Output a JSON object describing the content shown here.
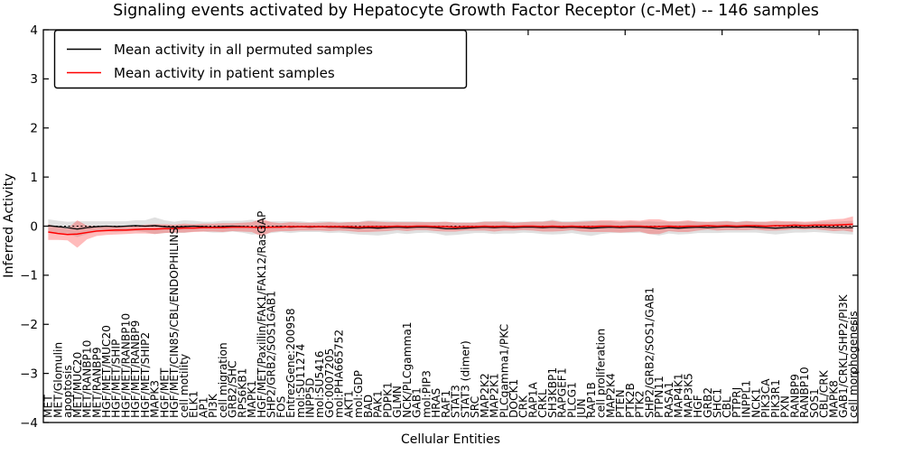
{
  "title": "Signaling events activated by Hepatocyte Growth Factor Receptor (c-Met) -- 146 samples",
  "axes": {
    "y_label": "Inferred Activity",
    "x_label": "Cellular Entities",
    "y_ticks": [
      "4",
      "3",
      "2",
      "1",
      "0",
      "−1",
      "−2",
      "−3",
      "−4"
    ]
  },
  "legend": {
    "items": [
      {
        "label": "Mean activity in all permuted samples",
        "color": "#000000"
      },
      {
        "label": "Mean activity in patient samples",
        "color": "#ff0000"
      }
    ]
  },
  "chart_data": {
    "type": "line",
    "title": "Signaling events activated by Hepatocyte Growth Factor Receptor (c-Met) -- 146 samples",
    "xlabel": "Cellular Entities",
    "ylabel": "Inferred Activity",
    "ylim": [
      -4,
      4
    ],
    "grid": false,
    "legend_position": "upper left",
    "zero_reference_line": true,
    "categories": [
      "MET",
      "MET/Glomulin",
      "apoptosis",
      "MET/MUC20",
      "MET/RANBP10",
      "MET/RANBP9",
      "HGF/MET/MUC20",
      "HGF/MET/SHIP",
      "HGF/MET/RANBP10",
      "HGF/MET/RANBP9",
      "HGF/MET/SHIP2",
      "MAPK3",
      "HGF/MET",
      "HGF/MET/CIN85/CBL/ENDOPHILINS",
      "cell motility",
      "ELK1",
      "AP1",
      "PI3K",
      "cell migration",
      "GRB2/SHC",
      "RPS6KB1",
      "MAPK1",
      "HGF/MET/Paxillin/FAK1/FAK12/RasGAP",
      "SHP2/GRB2/SOS1GAB1",
      "FOS",
      "EntrezGene:200958",
      "mol:SU11274",
      "INPP5D",
      "mol:SU5416",
      "GO:0007205",
      "mol:PHA665752",
      "AKT1",
      "mol:GDP",
      "BAD",
      "PAK1",
      "PDPK1",
      "GLMN",
      "NCK/PLCgamma1",
      "GAB1",
      "mol:PIP3",
      "HRAS",
      "RAF1",
      "STAT3",
      "STAT3 (dimer)",
      "SRC",
      "MAP2K2",
      "MAP2K1",
      "PLCgamma1/PKC",
      "DOCK1",
      "CRK",
      "RAP1A",
      "CRKL",
      "SH3KBP1",
      "RAPGEF1",
      "PLCG1",
      "JUN",
      "RAP1B",
      "cell proliferation",
      "MAP2K4",
      "PTEN",
      "PTK2B",
      "PTK2",
      "SHP2/GRB2/SOS1/GAB1",
      "PTPN11",
      "RASA1",
      "MAP4K1",
      "MAP3K5",
      "HGF",
      "GRB2",
      "SHC1",
      "CBL",
      "PTPRJ",
      "INPPL1",
      "NCK1",
      "PIK3CA",
      "PIK3R1",
      "PXN",
      "RANBP9",
      "RANBP10",
      "SOS1",
      "CBL/CRK",
      "MAPK8",
      "GAB1/CRKL/SHP2/PI3K",
      "cell morphogenesis"
    ],
    "series": [
      {
        "name": "Mean activity in all permuted samples",
        "color": "#000000",
        "values": [
          0.01,
          -0.01,
          -0.03,
          -0.06,
          -0.03,
          -0.01,
          0.0,
          -0.01,
          0.0,
          0.01,
          0.0,
          0.01,
          -0.01,
          -0.02,
          -0.01,
          0.0,
          -0.01,
          -0.02,
          -0.01,
          0.0,
          -0.01,
          -0.02,
          -0.03,
          -0.02,
          -0.01,
          -0.02,
          -0.01,
          -0.02,
          -0.01,
          -0.02,
          -0.02,
          -0.03,
          -0.04,
          -0.03,
          -0.04,
          -0.03,
          -0.02,
          -0.03,
          -0.02,
          -0.02,
          -0.03,
          -0.05,
          -0.05,
          -0.04,
          -0.03,
          -0.02,
          -0.03,
          -0.02,
          -0.03,
          -0.02,
          -0.02,
          -0.03,
          -0.02,
          -0.03,
          -0.02,
          -0.03,
          -0.04,
          -0.03,
          -0.02,
          -0.03,
          -0.02,
          -0.02,
          -0.03,
          -0.05,
          -0.03,
          -0.04,
          -0.03,
          -0.02,
          -0.03,
          -0.02,
          -0.01,
          -0.02,
          -0.01,
          -0.02,
          -0.03,
          -0.04,
          -0.03,
          -0.02,
          -0.03,
          -0.02,
          -0.02,
          -0.03,
          -0.03,
          -0.03
        ]
      },
      {
        "name": "Mean activity in patient samples",
        "color": "#ff0000",
        "values": [
          -0.12,
          -0.15,
          -0.17,
          -0.16,
          -0.13,
          -0.1,
          -0.09,
          -0.08,
          -0.08,
          -0.07,
          -0.06,
          -0.06,
          -0.05,
          -0.05,
          -0.04,
          -0.04,
          -0.03,
          -0.03,
          -0.03,
          -0.02,
          -0.02,
          -0.02,
          -0.03,
          -0.02,
          -0.02,
          -0.01,
          -0.01,
          -0.01,
          -0.01,
          -0.01,
          -0.01,
          -0.01,
          -0.02,
          -0.01,
          -0.01,
          -0.01,
          0.0,
          -0.01,
          0.0,
          0.0,
          -0.01,
          -0.01,
          -0.02,
          -0.01,
          -0.01,
          0.0,
          -0.01,
          0.0,
          -0.01,
          0.0,
          0.0,
          -0.01,
          0.0,
          -0.01,
          0.0,
          -0.01,
          -0.01,
          0.0,
          0.0,
          -0.01,
          0.0,
          0.0,
          -0.01,
          -0.01,
          0.0,
          -0.01,
          0.0,
          0.0,
          0.01,
          0.0,
          0.01,
          0.0,
          0.01,
          0.01,
          0.0,
          0.01,
          0.01,
          0.02,
          0.01,
          0.02,
          0.02,
          0.02,
          0.03,
          0.04
        ]
      }
    ],
    "bands": [
      {
        "name": "permuted-std-band",
        "series": 0,
        "color": "#999999",
        "opacity": 0.3,
        "halfwidths": [
          0.13,
          0.12,
          0.12,
          0.16,
          0.13,
          0.11,
          0.1,
          0.11,
          0.1,
          0.11,
          0.12,
          0.17,
          0.13,
          0.11,
          0.13,
          0.11,
          0.1,
          0.11,
          0.12,
          0.11,
          0.12,
          0.15,
          0.13,
          0.12,
          0.11,
          0.12,
          0.11,
          0.1,
          0.11,
          0.12,
          0.11,
          0.12,
          0.13,
          0.15,
          0.15,
          0.14,
          0.12,
          0.13,
          0.12,
          0.11,
          0.12,
          0.14,
          0.13,
          0.12,
          0.11,
          0.12,
          0.13,
          0.13,
          0.12,
          0.11,
          0.12,
          0.13,
          0.15,
          0.13,
          0.12,
          0.14,
          0.16,
          0.13,
          0.12,
          0.11,
          0.12,
          0.11,
          0.13,
          0.14,
          0.12,
          0.13,
          0.13,
          0.12,
          0.11,
          0.12,
          0.12,
          0.11,
          0.12,
          0.11,
          0.12,
          0.13,
          0.12,
          0.11,
          0.1,
          0.1,
          0.11,
          0.12,
          0.13,
          0.14
        ]
      },
      {
        "name": "patient-std-band",
        "series": 1,
        "color": "#ff2a2a",
        "opacity": 0.32,
        "halfwidths": [
          0.16,
          0.13,
          0.12,
          0.28,
          0.14,
          0.1,
          0.09,
          0.09,
          0.08,
          0.08,
          0.09,
          0.1,
          0.09,
          0.08,
          0.09,
          0.08,
          0.08,
          0.08,
          0.09,
          0.08,
          0.09,
          0.1,
          0.18,
          0.1,
          0.08,
          0.09,
          0.08,
          0.08,
          0.08,
          0.09,
          0.08,
          0.09,
          0.1,
          0.11,
          0.1,
          0.09,
          0.08,
          0.09,
          0.08,
          0.08,
          0.09,
          0.1,
          0.09,
          0.08,
          0.08,
          0.09,
          0.1,
          0.09,
          0.08,
          0.08,
          0.09,
          0.1,
          0.11,
          0.09,
          0.08,
          0.1,
          0.11,
          0.12,
          0.12,
          0.12,
          0.12,
          0.11,
          0.15,
          0.15,
          0.1,
          0.11,
          0.12,
          0.09,
          0.08,
          0.09,
          0.09,
          0.08,
          0.09,
          0.08,
          0.09,
          0.1,
          0.09,
          0.08,
          0.08,
          0.08,
          0.1,
          0.12,
          0.12,
          0.16
        ]
      }
    ],
    "top_ticks_x": [
      10,
      20,
      30,
      40,
      50,
      60,
      70,
      80
    ]
  }
}
